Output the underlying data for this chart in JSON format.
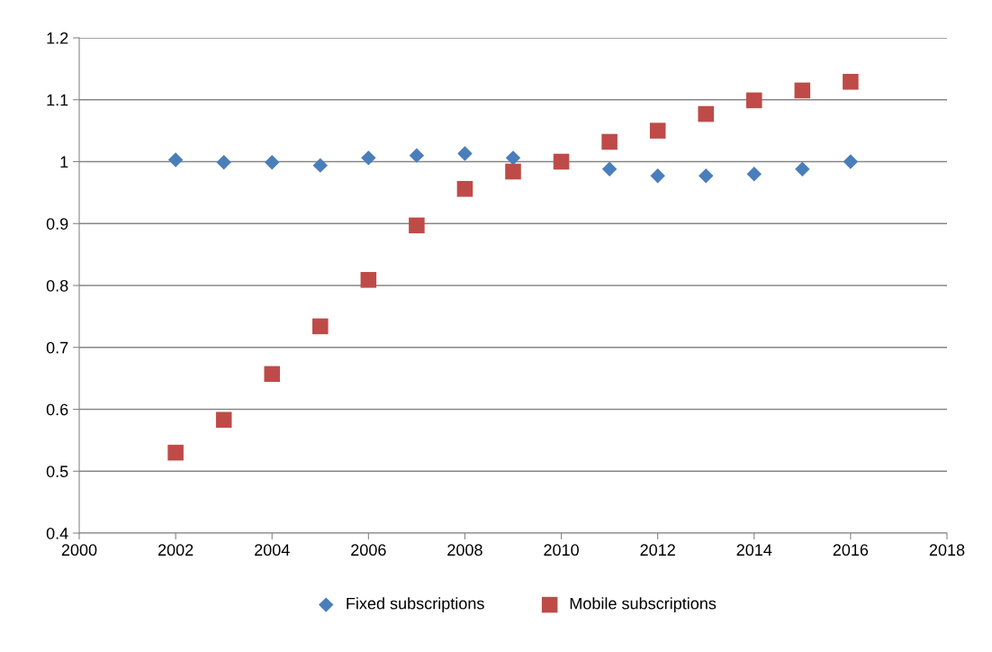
{
  "chart_data": {
    "type": "scatter",
    "x": [
      2002,
      2003,
      2004,
      2005,
      2006,
      2007,
      2008,
      2009,
      2010,
      2011,
      2012,
      2013,
      2014,
      2015,
      2016
    ],
    "series": [
      {
        "name": "Fixed subscriptions",
        "color": "#4a7ebb",
        "marker": "diamond",
        "values": [
          1.003,
          0.999,
          0.999,
          0.994,
          1.006,
          1.01,
          1.013,
          1.006,
          null,
          0.988,
          0.977,
          0.977,
          0.98,
          0.988,
          1.0
        ]
      },
      {
        "name": "Mobile subscriptions",
        "color": "#be4b48",
        "marker": "square",
        "values": [
          0.53,
          0.583,
          0.657,
          0.734,
          0.809,
          0.897,
          0.956,
          0.984,
          1.0,
          1.032,
          1.05,
          1.077,
          1.099,
          1.115,
          1.129
        ]
      }
    ],
    "xlim": [
      2000,
      2018
    ],
    "xticks": [
      2000,
      2002,
      2004,
      2006,
      2008,
      2010,
      2012,
      2014,
      2016,
      2018
    ],
    "ylim": [
      0.4,
      1.2
    ],
    "yticks": [
      {
        "value": 0.4,
        "label": "0.4"
      },
      {
        "value": 0.5,
        "label": "0.5"
      },
      {
        "value": 0.6,
        "label": "0.6"
      },
      {
        "value": 0.7,
        "label": "0.7"
      },
      {
        "value": 0.8,
        "label": "0.8"
      },
      {
        "value": 0.9,
        "label": "0.9"
      },
      {
        "value": 1.0,
        "label": "1"
      },
      {
        "value": 1.1,
        "label": "1.1"
      },
      {
        "value": 1.2,
        "label": "1.2"
      }
    ],
    "grid": "y",
    "legend": "bottom"
  }
}
